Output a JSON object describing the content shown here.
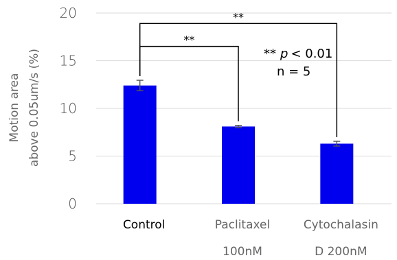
{
  "chart_data": {
    "type": "bar",
    "categories": [
      {
        "line1": "Control",
        "line2": "",
        "color": "#000000"
      },
      {
        "line1": "Paclitaxel",
        "line2": "100nM",
        "color": "#666666"
      },
      {
        "line1": "Cytochalasin",
        "line2": "D 200nM",
        "color": "#666666"
      }
    ],
    "values": [
      12.4,
      8.1,
      6.3
    ],
    "errors": [
      0.55,
      0.12,
      0.25
    ],
    "bar_color": "#0000EE",
    "ylabel_line1": "Motion area",
    "ylabel_line2": "above 0.05um/s (%)",
    "ylim": [
      0,
      20
    ],
    "yticks": [
      0,
      5,
      10,
      15,
      20
    ],
    "grid": true,
    "significance": [
      {
        "from": 0,
        "to": 1,
        "label": "**",
        "level": 16.5
      },
      {
        "from": 0,
        "to": 2,
        "label": "**",
        "level": 18.9
      }
    ],
    "annotation": {
      "stars": "**",
      "p_symbol": "p",
      "p_rest": "< 0.01",
      "n": "n = 5"
    }
  }
}
